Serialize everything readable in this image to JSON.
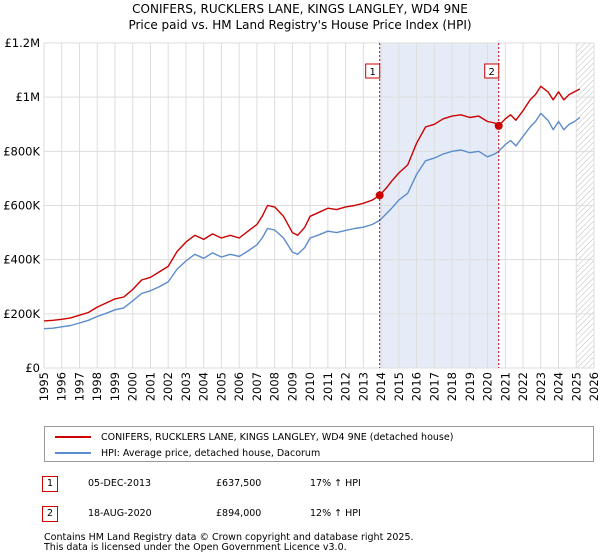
{
  "chart_data": {
    "type": "line",
    "title": "CONIFERS, RUCKLERS LANE, KINGS LANGLEY, WD4 9NE",
    "subtitle": "Price paid vs. HM Land Registry's House Price Index (HPI)",
    "xlabel": "",
    "ylabel": "",
    "xlim": [
      1995,
      2026
    ],
    "ylim": [
      0,
      1200000
    ],
    "x_ticks": [
      "1995",
      "1996",
      "1997",
      "1998",
      "1999",
      "2000",
      "2001",
      "2002",
      "2003",
      "2004",
      "2005",
      "2006",
      "2007",
      "2008",
      "2009",
      "2010",
      "2011",
      "2012",
      "2013",
      "2014",
      "2015",
      "2016",
      "2017",
      "2018",
      "2019",
      "2020",
      "2021",
      "2022",
      "2023",
      "2024",
      "2025",
      "2026"
    ],
    "y_ticks": [
      {
        "value": 0,
        "label": "£0"
      },
      {
        "value": 200000,
        "label": "£200K"
      },
      {
        "value": 400000,
        "label": "£400K"
      },
      {
        "value": 600000,
        "label": "£600K"
      },
      {
        "value": 800000,
        "label": "£800K"
      },
      {
        "value": 1000000,
        "label": "£1M"
      },
      {
        "value": 1200000,
        "label": "£1.2M"
      }
    ],
    "grid": true,
    "series": [
      {
        "name": "CONIFERS, RUCKLERS LANE, KINGS LANGLEY, WD4 9NE (detached house)",
        "color": "#cc0000",
        "x": [
          1995.0,
          1995.5,
          1996.0,
          1996.5,
          1997.0,
          1997.5,
          1998.0,
          1998.5,
          1999.0,
          1999.5,
          2000.0,
          2000.5,
          2001.0,
          2001.5,
          2002.0,
          2002.5,
          2003.0,
          2003.5,
          2004.0,
          2004.5,
          2005.0,
          2005.5,
          2006.0,
          2006.5,
          2007.0,
          2007.3,
          2007.6,
          2008.0,
          2008.5,
          2009.0,
          2009.3,
          2009.7,
          2010.0,
          2010.5,
          2011.0,
          2011.5,
          2012.0,
          2012.5,
          2013.0,
          2013.5,
          2013.92,
          2014.3,
          2014.6,
          2015.0,
          2015.5,
          2016.0,
          2016.5,
          2017.0,
          2017.5,
          2018.0,
          2018.5,
          2019.0,
          2019.5,
          2020.0,
          2020.4,
          2020.63,
          2021.0,
          2021.3,
          2021.6,
          2022.0,
          2022.4,
          2022.7,
          2023.0,
          2023.4,
          2023.7,
          2024.0,
          2024.3,
          2024.6,
          2024.9,
          2025.2
        ],
        "values": [
          174000,
          176000,
          180000,
          185000,
          195000,
          205000,
          225000,
          240000,
          255000,
          262000,
          290000,
          325000,
          335000,
          355000,
          375000,
          430000,
          465000,
          490000,
          475000,
          495000,
          480000,
          490000,
          480000,
          505000,
          530000,
          560000,
          600000,
          595000,
          560000,
          500000,
          490000,
          520000,
          560000,
          575000,
          590000,
          585000,
          595000,
          600000,
          608000,
          620000,
          637500,
          665000,
          690000,
          720000,
          750000,
          830000,
          890000,
          900000,
          920000,
          930000,
          935000,
          925000,
          930000,
          910000,
          905000,
          894000,
          920000,
          935000,
          915000,
          950000,
          990000,
          1010000,
          1040000,
          1020000,
          990000,
          1020000,
          990000,
          1010000,
          1020000,
          1030000
        ]
      },
      {
        "name": "HPI: Average price, detached house, Dacorum",
        "color": "#5b8ccb",
        "x": [
          1995.0,
          1995.5,
          1996.0,
          1996.5,
          1997.0,
          1997.5,
          1998.0,
          1998.5,
          1999.0,
          1999.5,
          2000.0,
          2000.5,
          2001.0,
          2001.5,
          2002.0,
          2002.5,
          2003.0,
          2003.5,
          2004.0,
          2004.5,
          2005.0,
          2005.5,
          2006.0,
          2006.5,
          2007.0,
          2007.3,
          2007.6,
          2008.0,
          2008.5,
          2009.0,
          2009.3,
          2009.7,
          2010.0,
          2010.5,
          2011.0,
          2011.5,
          2012.0,
          2012.5,
          2013.0,
          2013.5,
          2013.92,
          2014.3,
          2014.6,
          2015.0,
          2015.5,
          2016.0,
          2016.5,
          2017.0,
          2017.5,
          2018.0,
          2018.5,
          2019.0,
          2019.5,
          2020.0,
          2020.4,
          2020.63,
          2021.0,
          2021.3,
          2021.6,
          2022.0,
          2022.4,
          2022.7,
          2023.0,
          2023.4,
          2023.7,
          2024.0,
          2024.3,
          2024.6,
          2024.9,
          2025.2
        ],
        "values": [
          145000,
          147000,
          152000,
          157000,
          166000,
          176000,
          190000,
          202000,
          215000,
          222000,
          248000,
          275000,
          285000,
          300000,
          318000,
          365000,
          395000,
          420000,
          405000,
          425000,
          410000,
          420000,
          412000,
          432000,
          455000,
          480000,
          515000,
          510000,
          480000,
          428000,
          420000,
          445000,
          480000,
          492000,
          505000,
          500000,
          508000,
          515000,
          520000,
          530000,
          545000,
          570000,
          590000,
          620000,
          645000,
          715000,
          765000,
          775000,
          790000,
          800000,
          805000,
          795000,
          800000,
          780000,
          790000,
          800000,
          825000,
          840000,
          820000,
          855000,
          890000,
          910000,
          940000,
          915000,
          880000,
          910000,
          880000,
          900000,
          910000,
          925000
        ]
      }
    ],
    "annotations": [
      {
        "label": "1",
        "date": "05-DEC-2013",
        "x": 2013.92,
        "value": 637500
      },
      {
        "label": "2",
        "date": "18-AUG-2020",
        "x": 2020.63,
        "value": 894000
      }
    ],
    "shaded_period": [
      2013.92,
      2020.63
    ],
    "hatched_from": 2025.0
  },
  "legend": {
    "series1": "CONIFERS, RUCKLERS LANE, KINGS LANGLEY, WD4 9NE (detached house)",
    "series2": "HPI: Average price, detached house, Dacorum"
  },
  "transactions": [
    {
      "num": "1",
      "date": "05-DEC-2013",
      "price": "£637,500",
      "hpi": "17% ↑ HPI"
    },
    {
      "num": "2",
      "date": "18-AUG-2020",
      "price": "£894,000",
      "hpi": "12% ↑ HPI"
    }
  ],
  "footer": {
    "line1": "Contains HM Land Registry data © Crown copyright and database right 2025.",
    "line2": "This data is licensed under the Open Government Licence v3.0."
  },
  "colors": {
    "red": "#cc0000",
    "blue": "#5b8ccb",
    "shade": "#e6ecf7",
    "grid": "#dddddd"
  }
}
